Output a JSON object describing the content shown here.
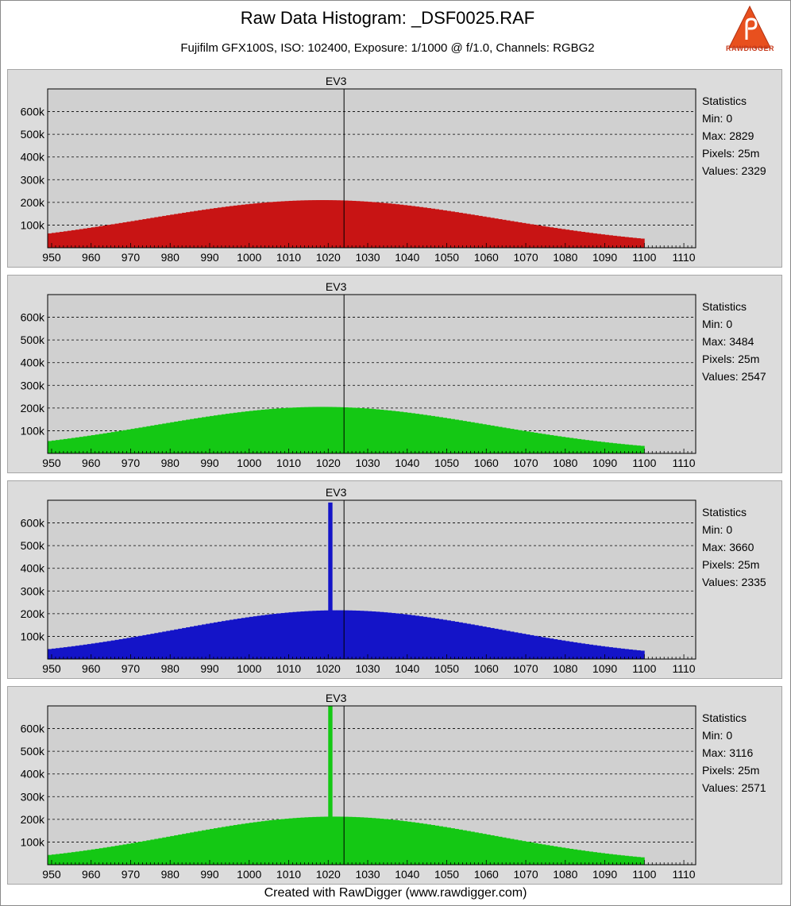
{
  "header": {
    "title": "Raw Data Histogram: _DSF0025.RAF",
    "subtitle": "Fujifilm GFX100S, ISO: 102400, Exposure: 1/1000 @ f/1.0, Channels: RGBG2",
    "logo_text": "RAWDIGGER"
  },
  "footer": {
    "text": "Created with RawDigger (www.rawdigger.com)"
  },
  "chart_data": [
    {
      "type": "bar",
      "channel": "R",
      "color": "#c81414",
      "marker": {
        "label": "EV3",
        "x": 1024
      },
      "xlim": [
        949,
        1113
      ],
      "ylim": [
        0,
        700000
      ],
      "xticks": [
        950,
        960,
        970,
        980,
        990,
        1000,
        1010,
        1020,
        1030,
        1040,
        1050,
        1060,
        1070,
        1080,
        1090,
        1100,
        1110
      ],
      "yticks": [
        100000,
        200000,
        300000,
        400000,
        500000,
        600000
      ],
      "ytick_labels": [
        "100k",
        "200k",
        "300k",
        "400k",
        "500k",
        "600k"
      ],
      "x_range": [
        949,
        1099
      ],
      "curve": {
        "peak_x": 1018,
        "peak_y": 210000,
        "width": 63
      },
      "spike": null,
      "stats": {
        "heading": "Statistics",
        "min": "Min: 0",
        "max": "Max: 2829",
        "pixels": "Pixels: 25m",
        "values": "Values: 2329"
      }
    },
    {
      "type": "bar",
      "channel": "G",
      "color": "#14c814",
      "marker": {
        "label": "EV3",
        "x": 1024
      },
      "xlim": [
        949,
        1113
      ],
      "ylim": [
        0,
        700000
      ],
      "xticks": [
        950,
        960,
        970,
        980,
        990,
        1000,
        1010,
        1020,
        1030,
        1040,
        1050,
        1060,
        1070,
        1080,
        1090,
        1100,
        1110
      ],
      "yticks": [
        100000,
        200000,
        300000,
        400000,
        500000,
        600000
      ],
      "ytick_labels": [
        "100k",
        "200k",
        "300k",
        "400k",
        "500k",
        "600k"
      ],
      "x_range": [
        949,
        1099
      ],
      "curve": {
        "peak_x": 1018,
        "peak_y": 205000,
        "width": 60
      },
      "spike": null,
      "stats": {
        "heading": "Statistics",
        "min": "Min: 0",
        "max": "Max: 3484",
        "pixels": "Pixels: 25m",
        "values": "Values: 2547"
      }
    },
    {
      "type": "bar",
      "channel": "B",
      "color": "#1414c8",
      "marker": {
        "label": "EV3",
        "x": 1024
      },
      "xlim": [
        949,
        1113
      ],
      "ylim": [
        0,
        700000
      ],
      "xticks": [
        950,
        960,
        970,
        980,
        990,
        1000,
        1010,
        1020,
        1030,
        1040,
        1050,
        1060,
        1070,
        1080,
        1090,
        1100,
        1110
      ],
      "yticks": [
        100000,
        200000,
        300000,
        400000,
        500000,
        600000
      ],
      "ytick_labels": [
        "100k",
        "200k",
        "300k",
        "400k",
        "500k",
        "600k"
      ],
      "x_range": [
        949,
        1099
      ],
      "curve": {
        "peak_x": 1022,
        "peak_y": 215000,
        "width": 58
      },
      "spike": {
        "x": 1020,
        "y": 690000
      },
      "stats": {
        "heading": "Statistics",
        "min": "Min: 0",
        "max": "Max: 3660",
        "pixels": "Pixels: 25m",
        "values": "Values: 2335"
      }
    },
    {
      "type": "bar",
      "channel": "G2",
      "color": "#14c814",
      "marker": {
        "label": "EV3",
        "x": 1024
      },
      "xlim": [
        949,
        1113
      ],
      "ylim": [
        0,
        700000
      ],
      "xticks": [
        950,
        960,
        970,
        980,
        990,
        1000,
        1010,
        1020,
        1030,
        1040,
        1050,
        1060,
        1070,
        1080,
        1090,
        1100,
        1110
      ],
      "yticks": [
        100000,
        200000,
        300000,
        400000,
        500000,
        600000
      ],
      "ytick_labels": [
        "100k",
        "200k",
        "300k",
        "400k",
        "500k",
        "600k"
      ],
      "x_range": [
        949,
        1099
      ],
      "curve": {
        "peak_x": 1021,
        "peak_y": 212000,
        "width": 57
      },
      "spike": {
        "x": 1020,
        "y": 700000
      },
      "stats": {
        "heading": "Statistics",
        "min": "Min: 0",
        "max": "Max: 3116",
        "pixels": "Pixels: 25m",
        "values": "Values: 2571"
      }
    }
  ]
}
